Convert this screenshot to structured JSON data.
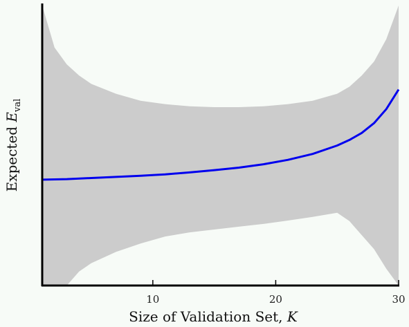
{
  "chart_data": {
    "type": "area",
    "xlabel": "Size of Validation Set, K",
    "xlabel_text": "Size of Validation Set, ",
    "xlabel_var": "K",
    "ylabel": "Expected E_val",
    "ylabel_text": "Expected ",
    "ylabel_var": "E",
    "ylabel_sub": "val",
    "xlim": [
      1,
      30
    ],
    "ylim": [
      0,
      1
    ],
    "xticks": [
      "10",
      "20",
      "30"
    ],
    "grid": false,
    "colors": {
      "line": "#0000ee",
      "band": "#cccccc",
      "background": "#f7fbf7",
      "axis": "#000000"
    },
    "series": [
      {
        "role": "mean",
        "x": [
          1,
          3,
          5,
          7,
          9,
          11,
          13,
          15,
          17,
          19,
          21,
          23,
          25,
          26,
          27,
          28,
          29,
          30
        ],
        "y": [
          0.378,
          0.38,
          0.384,
          0.388,
          0.392,
          0.397,
          0.404,
          0.412,
          0.421,
          0.433,
          0.449,
          0.47,
          0.5,
          0.52,
          0.545,
          0.58,
          0.63,
          0.7
        ]
      },
      {
        "role": "band",
        "x": [
          1,
          2,
          3,
          4,
          5,
          7,
          9,
          11,
          13,
          15,
          17,
          19,
          21,
          23,
          25,
          26,
          27,
          28,
          29,
          30
        ],
        "upper": [
          1.0,
          0.85,
          0.79,
          0.75,
          0.72,
          0.685,
          0.66,
          0.648,
          0.64,
          0.637,
          0.637,
          0.64,
          0.648,
          0.66,
          0.685,
          0.71,
          0.75,
          0.8,
          0.88,
          1.0
        ],
        "lower": [
          0.0,
          0.0,
          0.0,
          0.05,
          0.08,
          0.12,
          0.15,
          0.175,
          0.19,
          0.2,
          0.21,
          0.22,
          0.232,
          0.245,
          0.26,
          0.23,
          0.18,
          0.13,
          0.06,
          0.0
        ]
      }
    ]
  }
}
